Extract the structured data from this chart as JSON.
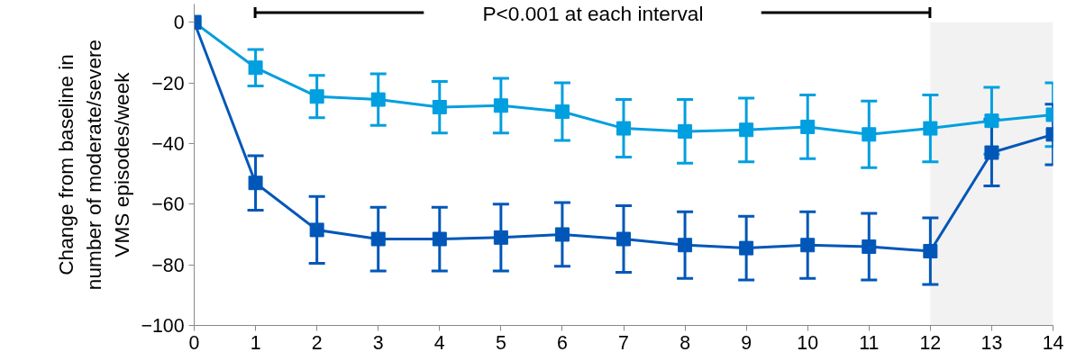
{
  "chart_data": {
    "type": "line",
    "ylabel": "Change from baseline in\nnumber of moderate/severe\nVMS episodes/week",
    "x": [
      0,
      1,
      2,
      3,
      4,
      5,
      6,
      7,
      8,
      9,
      10,
      11,
      12,
      13,
      14
    ],
    "xlim": [
      0,
      14
    ],
    "xticks": [
      0,
      1,
      2,
      3,
      4,
      5,
      6,
      7,
      8,
      9,
      10,
      11,
      12,
      13,
      14
    ],
    "ylim": [
      -100,
      6
    ],
    "yticks": [
      -100,
      -80,
      -60,
      -40,
      -20,
      0
    ],
    "marker": "square",
    "grid": false,
    "series": [
      {
        "color": "#009fdf",
        "values": [
          0,
          -15,
          -24.5,
          -25.5,
          -28,
          -27.5,
          -29.5,
          -35,
          -36,
          -35.5,
          -34.5,
          -37,
          -35,
          -32.5,
          -30.5
        ],
        "errors": [
          null,
          6,
          7,
          8.5,
          8.5,
          9,
          9.5,
          9.5,
          10.5,
          10.5,
          10.5,
          11,
          11,
          11,
          10.5
        ]
      },
      {
        "color": "#0057b8",
        "values": [
          0,
          -53,
          -68.5,
          -71.5,
          -71.5,
          -71,
          -70,
          -71.5,
          -73.5,
          -74.5,
          -73.5,
          -74,
          -75.5,
          -43,
          -37
        ],
        "errors": [
          null,
          9,
          11,
          10.5,
          10.5,
          11,
          10.5,
          11,
          11,
          10.5,
          11,
          11,
          11,
          11,
          10
        ]
      }
    ],
    "bands": [
      {
        "axis": "x",
        "from": 12,
        "to": 14,
        "color": "#f2f2f2"
      }
    ],
    "annotations": [
      "P<0.001 at each interval"
    ]
  }
}
